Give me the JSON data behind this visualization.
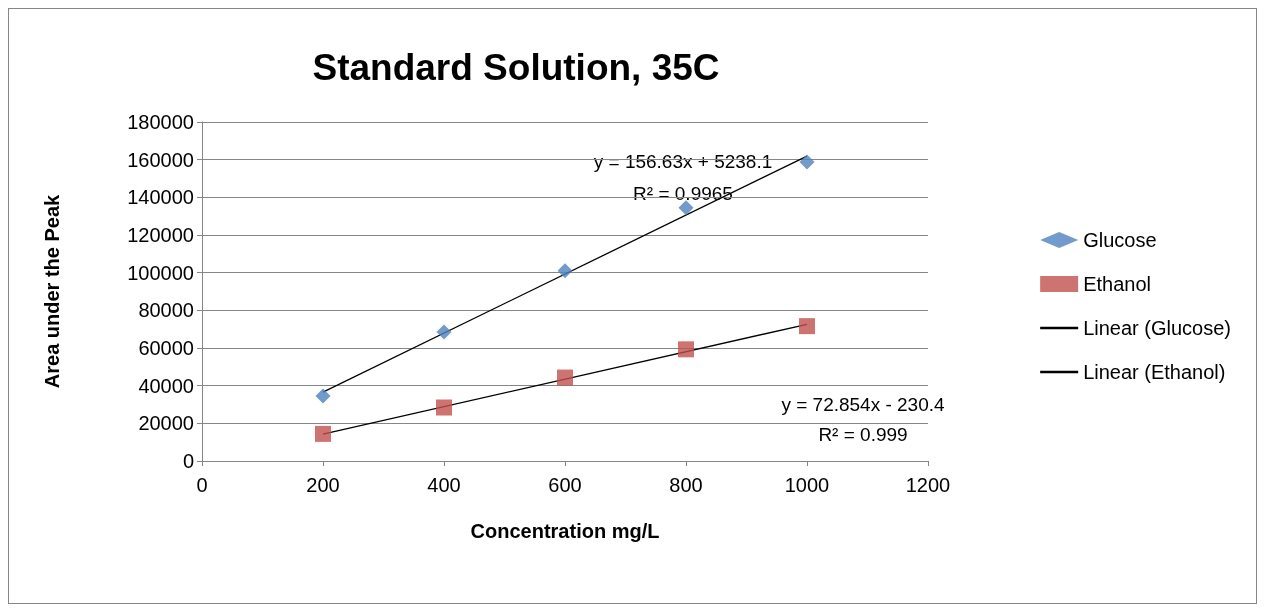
{
  "chart_data": {
    "type": "scatter",
    "title": "Standard Solution, 35C",
    "xlabel": "Concentration mg/L",
    "ylabel": "Area under the Peak",
    "xlim": [
      0,
      1200
    ],
    "xticks": [
      0,
      200,
      400,
      600,
      800,
      1000,
      1200
    ],
    "ylim": [
      0,
      180000
    ],
    "yticks": [
      0,
      20000,
      40000,
      60000,
      80000,
      100000,
      120000,
      140000,
      160000,
      180000
    ],
    "grid": "y",
    "legend": "right",
    "series": [
      {
        "name": "Glucose",
        "marker": "diamond",
        "color": "#4f81bd",
        "x": [
          200,
          400,
          600,
          800,
          1000
        ],
        "values": [
          34500,
          68500,
          101000,
          134500,
          158800
        ]
      },
      {
        "name": "Ethanol",
        "marker": "square",
        "color": "#c0504d",
        "x": [
          200,
          400,
          600,
          800,
          1000
        ],
        "values": [
          14400,
          28400,
          44300,
          59300,
          71600
        ]
      },
      {
        "name": "Linear (Glucose)",
        "type": "line",
        "marker": "none",
        "color": "#000000",
        "x": [
          200,
          1000
        ],
        "values": [
          36600,
          161900
        ]
      },
      {
        "name": "Linear (Ethanol)",
        "type": "line",
        "marker": "none",
        "color": "#000000",
        "x": [
          200,
          1000
        ],
        "values": [
          14300,
          72600
        ]
      }
    ],
    "annotations": [
      "y = 156.63x + 5238.1",
      "R² = 0.9965",
      "y = 72.854x - 230.4",
      "R² = 0.999"
    ]
  }
}
